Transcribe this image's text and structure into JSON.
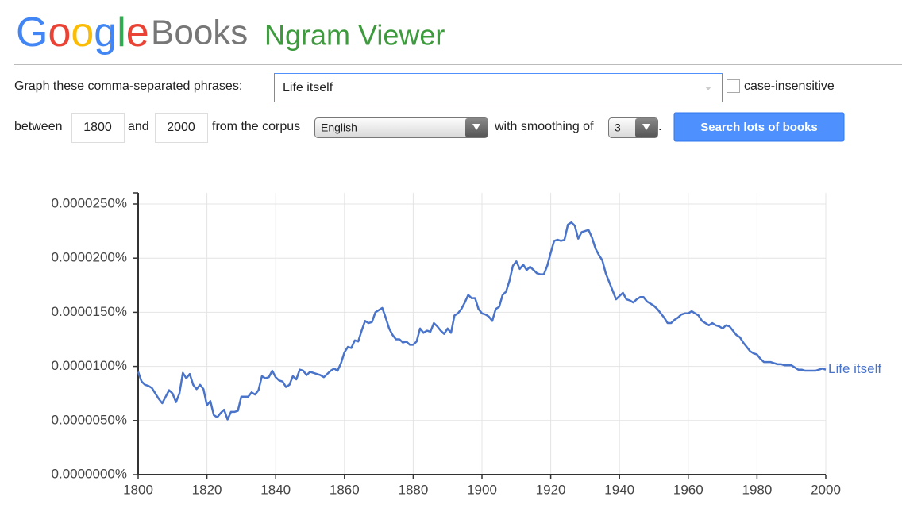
{
  "header": {
    "logo": "Google",
    "product": "Books",
    "title": "Ngram Viewer"
  },
  "form": {
    "phrases_label": "Graph these comma-separated phrases:",
    "phrases": "Life itself",
    "case_label": "case-insensitive",
    "between": "between",
    "start_year": "1800",
    "and": "and",
    "end_year": "2000",
    "corpus_label": "from the corpus",
    "corpus": "English",
    "smoothing_label": "with smoothing of",
    "smoothing": "3",
    "period": ".",
    "button": "Search lots of books"
  },
  "chart_data": {
    "type": "line",
    "x": [
      1800,
      1801,
      1802,
      1803,
      1804,
      1805,
      1806,
      1807,
      1808,
      1809,
      1810,
      1811,
      1812,
      1813,
      1814,
      1815,
      1816,
      1817,
      1818,
      1819,
      1820,
      1821,
      1822,
      1823,
      1824,
      1825,
      1826,
      1827,
      1828,
      1829,
      1830,
      1831,
      1832,
      1833,
      1834,
      1835,
      1836,
      1837,
      1838,
      1839,
      1840,
      1841,
      1842,
      1843,
      1844,
      1845,
      1846,
      1847,
      1848,
      1849,
      1850,
      1851,
      1852,
      1853,
      1854,
      1855,
      1856,
      1857,
      1858,
      1859,
      1860,
      1861,
      1862,
      1863,
      1864,
      1865,
      1866,
      1867,
      1868,
      1869,
      1870,
      1871,
      1872,
      1873,
      1874,
      1875,
      1876,
      1877,
      1878,
      1879,
      1880,
      1881,
      1882,
      1883,
      1884,
      1885,
      1886,
      1887,
      1888,
      1889,
      1890,
      1891,
      1892,
      1893,
      1894,
      1895,
      1896,
      1897,
      1898,
      1899,
      1900,
      1901,
      1902,
      1903,
      1904,
      1905,
      1906,
      1907,
      1908,
      1909,
      1910,
      1911,
      1912,
      1913,
      1914,
      1915,
      1916,
      1917,
      1918,
      1919,
      1920,
      1921,
      1922,
      1923,
      1924,
      1925,
      1926,
      1927,
      1928,
      1929,
      1930,
      1931,
      1932,
      1933,
      1934,
      1935,
      1936,
      1937,
      1938,
      1939,
      1940,
      1941,
      1942,
      1943,
      1944,
      1945,
      1946,
      1947,
      1948,
      1949,
      1950,
      1951,
      1952,
      1953,
      1954,
      1955,
      1956,
      1957,
      1958,
      1959,
      1960,
      1961,
      1962,
      1963,
      1964,
      1965,
      1966,
      1967,
      1968,
      1969,
      1970,
      1971,
      1972,
      1973,
      1974,
      1975,
      1976,
      1977,
      1978,
      1979,
      1980,
      1981,
      1982,
      1983,
      1984,
      1985,
      1986,
      1987,
      1988,
      1989,
      1990,
      1991,
      1992,
      1993,
      1994,
      1995,
      1996,
      1997,
      1998,
      1999,
      2000
    ],
    "series": [
      {
        "name": "Life itself",
        "color": "#4a74c9",
        "values": [
          9.5e-06,
          8.6e-06,
          8.3e-06,
          8.2e-06,
          8e-06,
          7.5e-06,
          7e-06,
          6.6e-06,
          7.2e-06,
          7.8e-06,
          7.5e-06,
          6.7e-06,
          7.5e-06,
          9.4e-06,
          8.9e-06,
          9.3e-06,
          8.3e-06,
          7.9e-06,
          8.3e-06,
          7.9e-06,
          6.4e-06,
          6.8e-06,
          5.5e-06,
          5.3e-06,
          5.7e-06,
          6e-06,
          5.1e-06,
          5.8e-06,
          5.8e-06,
          5.9e-06,
          7.2e-06,
          7.2e-06,
          7.2e-06,
          7.6e-06,
          7.4e-06,
          7.8e-06,
          9.1e-06,
          8.9e-06,
          9e-06,
          9.6e-06,
          9e-06,
          8.7e-06,
          8.6e-06,
          8.1e-06,
          8.3e-06,
          9.1e-06,
          8.8e-06,
          9.7e-06,
          9.6e-06,
          9.2e-06,
          9.5e-06,
          9.4e-06,
          9.3e-06,
          9.2e-06,
          9e-06,
          9.3e-06,
          9.6e-06,
          9.8e-06,
          9.6e-06,
          1.03e-05,
          1.13e-05,
          1.18e-05,
          1.17e-05,
          1.24e-05,
          1.23e-05,
          1.33e-05,
          1.42e-05,
          1.4e-05,
          1.41e-05,
          1.5e-05,
          1.52e-05,
          1.54e-05,
          1.45e-05,
          1.35e-05,
          1.29e-05,
          1.25e-05,
          1.25e-05,
          1.22e-05,
          1.23e-05,
          1.2e-05,
          1.2e-05,
          1.23e-05,
          1.35e-05,
          1.31e-05,
          1.33e-05,
          1.32e-05,
          1.4e-05,
          1.37e-05,
          1.33e-05,
          1.3e-05,
          1.35e-05,
          1.31e-05,
          1.47e-05,
          1.49e-05,
          1.53e-05,
          1.59e-05,
          1.66e-05,
          1.63e-05,
          1.63e-05,
          1.53e-05,
          1.49e-05,
          1.48e-05,
          1.46e-05,
          1.42e-05,
          1.53e-05,
          1.55e-05,
          1.66e-05,
          1.69e-05,
          1.79e-05,
          1.93e-05,
          1.97e-05,
          1.9e-05,
          1.94e-05,
          1.89e-05,
          1.92e-05,
          1.89e-05,
          1.86e-05,
          1.85e-05,
          1.85e-05,
          1.93e-05,
          2.05e-05,
          2.16e-05,
          2.17e-05,
          2.16e-05,
          2.17e-05,
          2.31e-05,
          2.33e-05,
          2.3e-05,
          2.18e-05,
          2.24e-05,
          2.25e-05,
          2.26e-05,
          2.19e-05,
          2.09e-05,
          2.03e-05,
          1.98e-05,
          1.86e-05,
          1.78e-05,
          1.7e-05,
          1.62e-05,
          1.65e-05,
          1.68e-05,
          1.62e-05,
          1.61e-05,
          1.59e-05,
          1.62e-05,
          1.64e-05,
          1.64e-05,
          1.6e-05,
          1.58e-05,
          1.56e-05,
          1.53e-05,
          1.49e-05,
          1.45e-05,
          1.4e-05,
          1.4e-05,
          1.43e-05,
          1.45e-05,
          1.48e-05,
          1.49e-05,
          1.49e-05,
          1.51e-05,
          1.49e-05,
          1.47e-05,
          1.42e-05,
          1.4e-05,
          1.38e-05,
          1.4e-05,
          1.38e-05,
          1.37e-05,
          1.35e-05,
          1.38e-05,
          1.37e-05,
          1.33e-05,
          1.29e-05,
          1.27e-05,
          1.22e-05,
          1.18e-05,
          1.14e-05,
          1.12e-05,
          1.11e-05,
          1.07e-05,
          1.04e-05,
          1.04e-05,
          1.04e-05,
          1.03e-05,
          1.02e-05,
          1.02e-05,
          1.01e-05,
          1.01e-05,
          1.01e-05,
          9.9e-06,
          9.7e-06,
          9.7e-06,
          9.6e-06,
          9.6e-06,
          9.6e-06,
          9.6e-06,
          9.7e-06,
          9.8e-06,
          9.7e-06
        ]
      }
    ],
    "xlim": [
      1800,
      2000
    ],
    "xticks": [
      1800,
      1820,
      1840,
      1860,
      1880,
      1900,
      1920,
      1940,
      1960,
      1980,
      2000
    ],
    "ylim": [
      0,
      2.5e-05
    ],
    "yticks": [
      {
        "value": 0,
        "label": "0.0000000%"
      },
      {
        "value": 5e-06,
        "label": "0.0000050%"
      },
      {
        "value": 1e-05,
        "label": "0.0000100%"
      },
      {
        "value": 1.5e-05,
        "label": "0.0000150%"
      },
      {
        "value": 2e-05,
        "label": "0.0000200%"
      },
      {
        "value": 2.5e-05,
        "label": "0.0000250%"
      }
    ],
    "grid": true
  }
}
